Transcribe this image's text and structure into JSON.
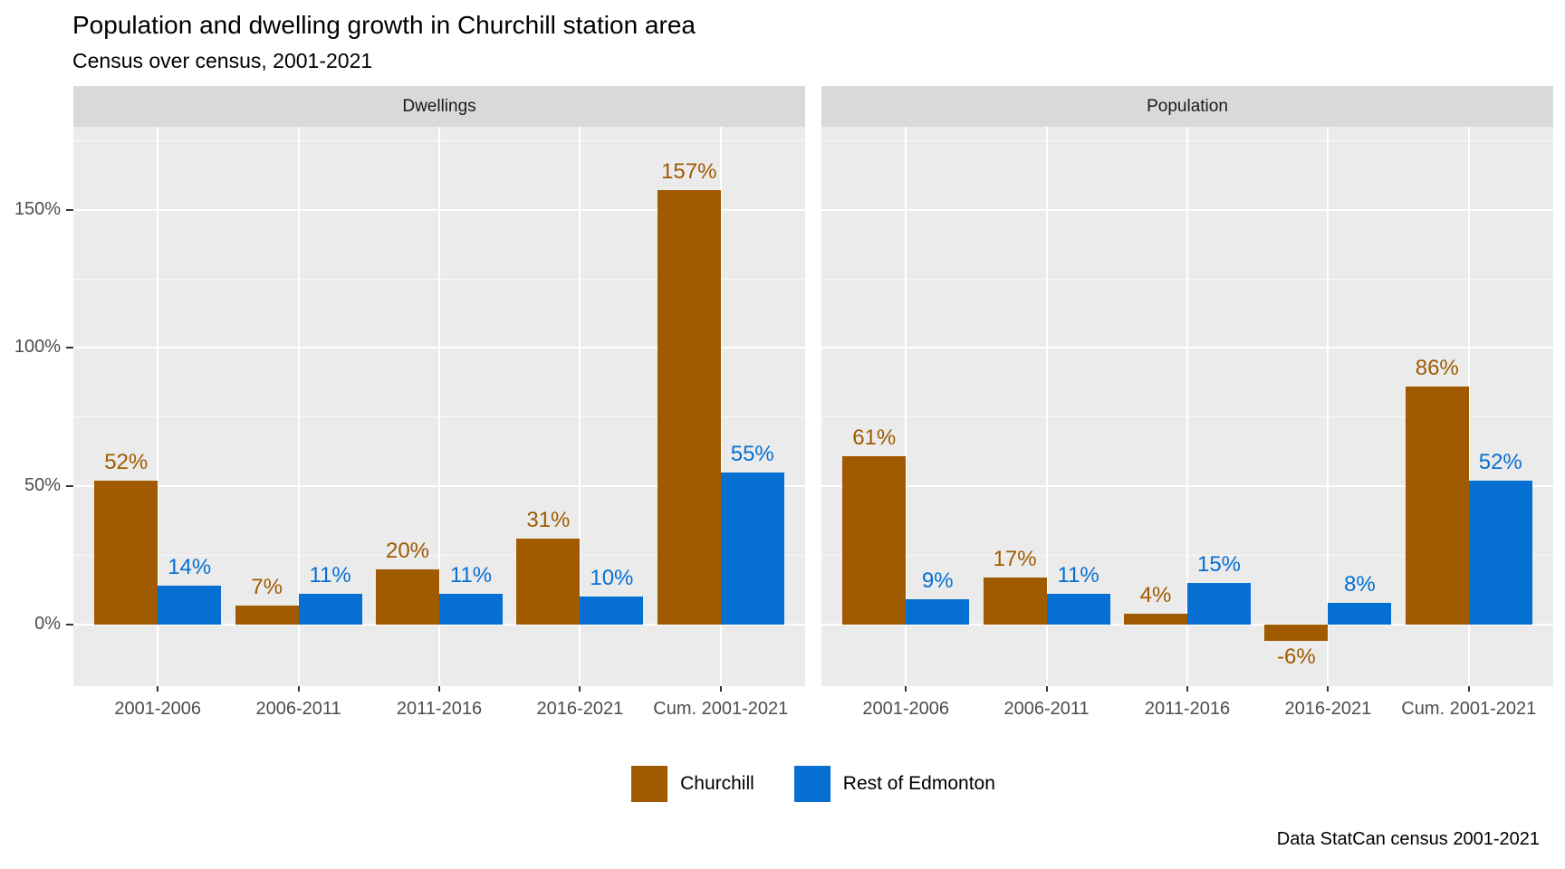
{
  "chart_data": {
    "type": "bar",
    "title": "Population and dwelling growth in Churchill station area",
    "subtitle": "Census over census, 2001-2021",
    "caption": "Data StatCan census 2001-2021",
    "categories": [
      "2001-2006",
      "2006-2011",
      "2011-2016",
      "2016-2021",
      "Cum. 2001-2021"
    ],
    "facets": [
      {
        "label": "Dwellings",
        "series": [
          {
            "name": "Churchill",
            "values": [
              52,
              7,
              20,
              31,
              157
            ]
          },
          {
            "name": "Rest of Edmonton",
            "values": [
              14,
              11,
              11,
              10,
              55
            ]
          }
        ]
      },
      {
        "label": "Population",
        "series": [
          {
            "name": "Churchill",
            "values": [
              61,
              17,
              4,
              -6,
              86
            ]
          },
          {
            "name": "Rest of Edmonton",
            "values": [
              9,
              11,
              15,
              8,
              52
            ]
          }
        ]
      }
    ],
    "value_unit": "%",
    "bar_labels_shown": true,
    "y_axis": {
      "tick_values": [
        0,
        50,
        100,
        150
      ],
      "tick_labels": [
        "0%",
        "50%",
        "100%",
        "150%"
      ],
      "minor_tick_values": [
        25,
        75,
        125,
        175
      ],
      "ylim": [
        -22,
        180
      ]
    },
    "grid": true,
    "legend_position": "bottom"
  },
  "legend": {
    "items": [
      {
        "label": "Churchill",
        "color": "#A05A00"
      },
      {
        "label": "Rest of Edmonton",
        "color": "#0670D2"
      }
    ]
  },
  "colors": {
    "churchill": "#A05A00",
    "rest_of_edmonton": "#0670D2",
    "panel_background": "#EBEBEB",
    "strip_background": "#D9D9D9",
    "gridline": "#FFFFFF",
    "axis_text": "#4D4D4D",
    "tick_mark": "#333333"
  }
}
